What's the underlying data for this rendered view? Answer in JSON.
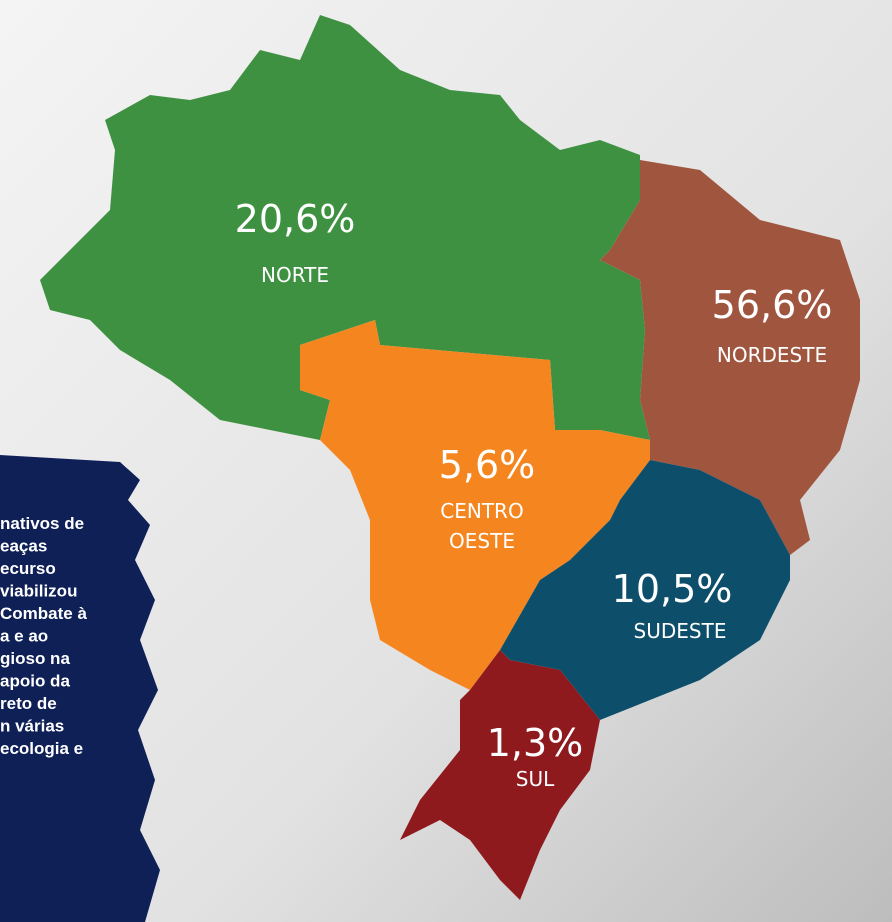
{
  "regions": [
    {
      "percent": "20,6%",
      "name": "NORTE"
    },
    {
      "percent": "56,6%",
      "name": "NORDESTE"
    },
    {
      "percent": "5,6%",
      "name": "CENTRO OESTE"
    },
    {
      "percent": "10,5%",
      "name": "SUDESTE"
    },
    {
      "percent": "1,3%",
      "name": "SUL"
    }
  ],
  "side_text": [
    "nativos de",
    "eaças",
    "ecurso",
    "viabilizou",
    "Combate à",
    "a e ao",
    "gioso na",
    "apoio da",
    "reto de",
    "n várias",
    "ecologia e"
  ]
}
